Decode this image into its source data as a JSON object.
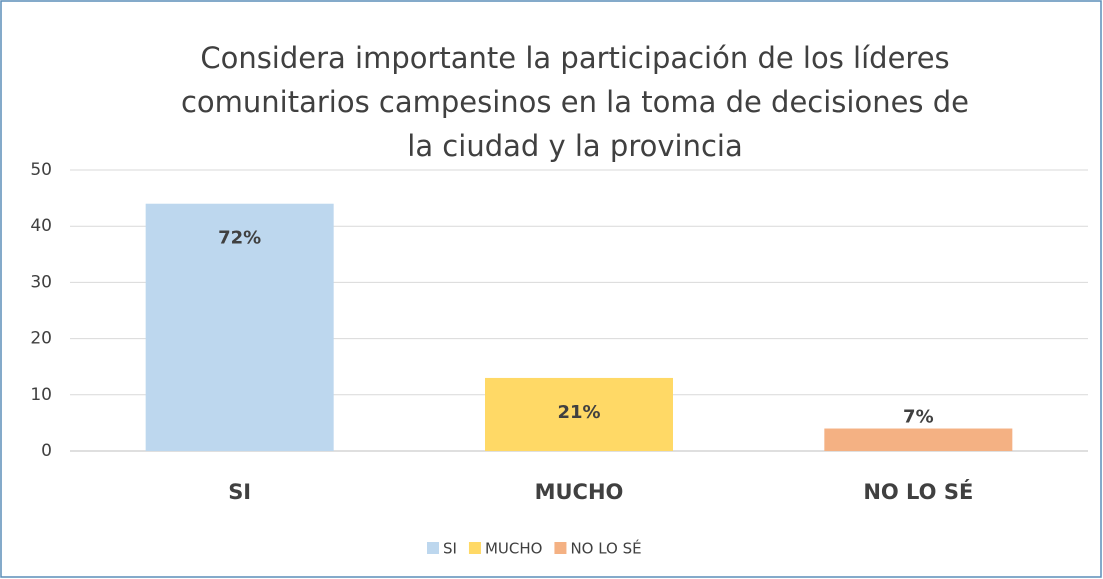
{
  "chart_data": {
    "type": "bar",
    "title": [
      "Considera importante la participación de los líderes",
      "comunitarios campesinos en la toma de decisiones de",
      "la ciudad y la provincia"
    ],
    "categories": [
      "SI",
      "MUCHO",
      "NO LO SÉ"
    ],
    "values": [
      44,
      13,
      4
    ],
    "data_labels": [
      "72%",
      "21%",
      "7%"
    ],
    "colors": [
      "#bdd7ee",
      "#ffd966",
      "#f4b183"
    ],
    "ylim": [
      0,
      50
    ],
    "yticks": [
      0,
      10,
      20,
      30,
      40,
      50
    ],
    "grid": true,
    "legend": "bottom"
  }
}
